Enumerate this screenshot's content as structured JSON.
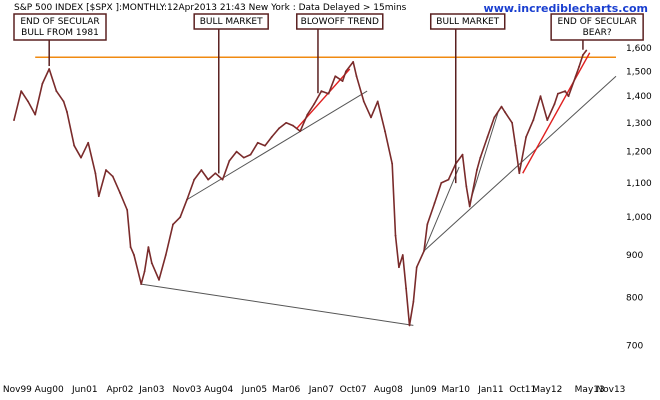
{
  "header": {
    "title": "S&P 500 INDEX [$SPX ]:MONTHLY:12Apr2013 21:43 New York : Data Delayed > 15mins",
    "site": "www.incrediblecharts.com"
  },
  "chart_data": {
    "type": "line",
    "scale": "log",
    "ylim": [
      650,
      1750
    ],
    "y_ticks": [
      700,
      800,
      900,
      1000,
      1100,
      1200,
      1300,
      1400,
      1500,
      1600
    ],
    "y_tick_labels": [
      "700",
      "800",
      "900",
      "1,000",
      "1,100",
      "1,200",
      "1,300",
      "1,400",
      "1,500",
      "1,600"
    ],
    "x_range": [
      1999.75,
      2013.95
    ],
    "x_ticks": [
      {
        "label": "Nov99",
        "x": 1999.83
      },
      {
        "label": "Aug00",
        "x": 2000.58
      },
      {
        "label": "Jun01",
        "x": 2001.42
      },
      {
        "label": "Apr02",
        "x": 2002.25
      },
      {
        "label": "Jan03",
        "x": 2003.0
      },
      {
        "label": "Nov03",
        "x": 2003.83
      },
      {
        "label": "Aug04",
        "x": 2004.58
      },
      {
        "label": "Jun05",
        "x": 2005.42
      },
      {
        "label": "Mar06",
        "x": 2006.17
      },
      {
        "label": "Jan07",
        "x": 2007.0
      },
      {
        "label": "Oct07",
        "x": 2007.75
      },
      {
        "label": "Aug08",
        "x": 2008.58
      },
      {
        "label": "Jun09",
        "x": 2009.42
      },
      {
        "label": "Mar10",
        "x": 2010.17
      },
      {
        "label": "Jan11",
        "x": 2011.0
      },
      {
        "label": "Oct11",
        "x": 2011.75
      },
      {
        "label": "May12",
        "x": 2012.33
      },
      {
        "label": "May13",
        "x": 2013.33
      },
      {
        "label": "Nov13",
        "x": 2013.83
      }
    ],
    "series": [
      {
        "color": "#7a2b2b",
        "points": [
          [
            1999.75,
            1310
          ],
          [
            1999.92,
            1420
          ],
          [
            2000.08,
            1380
          ],
          [
            2000.25,
            1330
          ],
          [
            2000.42,
            1450
          ],
          [
            2000.58,
            1510
          ],
          [
            2000.75,
            1420
          ],
          [
            2000.92,
            1380
          ],
          [
            2001.0,
            1340
          ],
          [
            2001.17,
            1220
          ],
          [
            2001.33,
            1180
          ],
          [
            2001.5,
            1230
          ],
          [
            2001.67,
            1130
          ],
          [
            2001.75,
            1060
          ],
          [
            2001.92,
            1140
          ],
          [
            2002.08,
            1120
          ],
          [
            2002.25,
            1070
          ],
          [
            2002.42,
            1020
          ],
          [
            2002.5,
            920
          ],
          [
            2002.58,
            900
          ],
          [
            2002.75,
            830
          ],
          [
            2002.83,
            860
          ],
          [
            2002.92,
            920
          ],
          [
            2003.0,
            880
          ],
          [
            2003.17,
            840
          ],
          [
            2003.33,
            900
          ],
          [
            2003.5,
            980
          ],
          [
            2003.67,
            1000
          ],
          [
            2003.83,
            1050
          ],
          [
            2004.0,
            1110
          ],
          [
            2004.17,
            1140
          ],
          [
            2004.33,
            1110
          ],
          [
            2004.5,
            1130
          ],
          [
            2004.67,
            1110
          ],
          [
            2004.83,
            1170
          ],
          [
            2005.0,
            1200
          ],
          [
            2005.17,
            1180
          ],
          [
            2005.33,
            1190
          ],
          [
            2005.5,
            1230
          ],
          [
            2005.67,
            1220
          ],
          [
            2005.83,
            1250
          ],
          [
            2006.0,
            1280
          ],
          [
            2006.17,
            1300
          ],
          [
            2006.33,
            1290
          ],
          [
            2006.5,
            1270
          ],
          [
            2006.67,
            1330
          ],
          [
            2006.83,
            1370
          ],
          [
            2007.0,
            1420
          ],
          [
            2007.17,
            1410
          ],
          [
            2007.33,
            1480
          ],
          [
            2007.5,
            1460
          ],
          [
            2007.58,
            1500
          ],
          [
            2007.75,
            1540
          ],
          [
            2007.83,
            1480
          ],
          [
            2008.0,
            1380
          ],
          [
            2008.17,
            1320
          ],
          [
            2008.33,
            1380
          ],
          [
            2008.5,
            1270
          ],
          [
            2008.67,
            1160
          ],
          [
            2008.75,
            950
          ],
          [
            2008.83,
            870
          ],
          [
            2008.92,
            900
          ],
          [
            2009.0,
            820
          ],
          [
            2009.08,
            740
          ],
          [
            2009.17,
            790
          ],
          [
            2009.25,
            870
          ],
          [
            2009.42,
            910
          ],
          [
            2009.5,
            980
          ],
          [
            2009.67,
            1040
          ],
          [
            2009.83,
            1100
          ],
          [
            2010.0,
            1110
          ],
          [
            2010.17,
            1160
          ],
          [
            2010.33,
            1190
          ],
          [
            2010.42,
            1090
          ],
          [
            2010.5,
            1030
          ],
          [
            2010.67,
            1140
          ],
          [
            2010.75,
            1180
          ],
          [
            2010.92,
            1250
          ],
          [
            2011.08,
            1320
          ],
          [
            2011.25,
            1360
          ],
          [
            2011.33,
            1340
          ],
          [
            2011.5,
            1300
          ],
          [
            2011.58,
            1220
          ],
          [
            2011.67,
            1130
          ],
          [
            2011.83,
            1250
          ],
          [
            2012.0,
            1310
          ],
          [
            2012.17,
            1400
          ],
          [
            2012.33,
            1310
          ],
          [
            2012.5,
            1370
          ],
          [
            2012.58,
            1410
          ],
          [
            2012.75,
            1420
          ],
          [
            2012.83,
            1400
          ],
          [
            2013.0,
            1480
          ],
          [
            2013.08,
            1520
          ],
          [
            2013.17,
            1570
          ],
          [
            2013.25,
            1590
          ]
        ]
      }
    ],
    "horizontal_line": {
      "y": 1560,
      "color": "#f08a10"
    },
    "trendlines": [
      {
        "color": "#555555",
        "from": [
          2002.75,
          830
        ],
        "to": [
          2009.17,
          740
        ]
      },
      {
        "color": "#555555",
        "from": [
          2003.83,
          1050
        ],
        "to": [
          2008.08,
          1420
        ]
      },
      {
        "color": "#e02020",
        "from": [
          2006.42,
          1280
        ],
        "to": [
          2007.67,
          1510
        ]
      },
      {
        "color": "#555555",
        "from": [
          2009.42,
          910
        ],
        "to": [
          2013.95,
          1480
        ]
      },
      {
        "color": "#555555",
        "from": [
          2009.42,
          910
        ],
        "to": [
          2010.25,
          1150
        ]
      },
      {
        "color": "#555555",
        "from": [
          2010.5,
          1040
        ],
        "to": [
          2011.17,
          1340
        ]
      },
      {
        "color": "#e02020",
        "from": [
          2011.75,
          1130
        ],
        "to": [
          2013.33,
          1580
        ]
      }
    ],
    "annotations": [
      {
        "lines": [
          "END OF SECULAR",
          "BULL FROM 1981"
        ],
        "point": [
          2000.58,
          1510
        ],
        "box_x": 1999.75,
        "box_y_top": 1850
      },
      {
        "lines": [
          "BULL MARKET"
        ],
        "point": [
          2004.58,
          1120
        ],
        "box_x": 2004.0,
        "box_y_top": 1850
      },
      {
        "lines": [
          "BLOWOFF TREND"
        ],
        "point": [
          2006.92,
          1400
        ],
        "box_x": 2006.42,
        "box_y_top": 1850
      },
      {
        "lines": [
          "BULL MARKET"
        ],
        "point": [
          2010.17,
          1090
        ],
        "box_x": 2009.58,
        "box_y_top": 1850
      },
      {
        "lines": [
          "END OF SECULAR",
          "BEAR?"
        ],
        "point": [
          2013.17,
          1580
        ],
        "box_x": 2012.42,
        "box_y_top": 1850
      }
    ]
  }
}
